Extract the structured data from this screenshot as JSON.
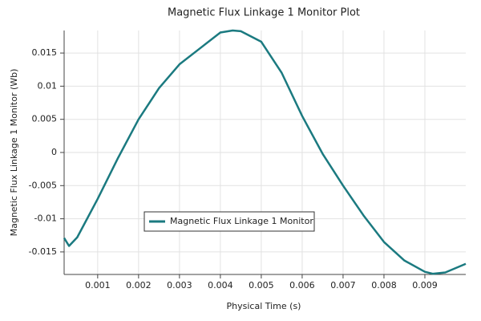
{
  "chart_data": {
    "type": "line",
    "title": "Magnetic Flux Linkage 1 Monitor Plot",
    "xlabel": "Physical Time (s)",
    "ylabel": "Magnetic Flux Linkage 1 Monitor (Wb)",
    "x": [
      0.00018,
      0.0003,
      0.0005,
      0.001,
      0.0015,
      0.002,
      0.0025,
      0.003,
      0.0035,
      0.004,
      0.0043,
      0.0045,
      0.005,
      0.0055,
      0.006,
      0.0065,
      0.007,
      0.0075,
      0.008,
      0.0085,
      0.009,
      0.0092,
      0.0095,
      0.01
    ],
    "series": [
      {
        "name": "Magnetic Flux Linkage 1 Monitor",
        "color": "#1b7a80",
        "values": [
          -0.0129,
          -0.0141,
          -0.0128,
          -0.007,
          -0.0008,
          0.005,
          0.0097,
          0.0133,
          0.0157,
          0.0181,
          0.0184,
          0.0183,
          0.0167,
          0.012,
          0.0055,
          -0.0002,
          -0.005,
          -0.0095,
          -0.0135,
          -0.0163,
          -0.018,
          -0.0183,
          -0.0181,
          -0.0168
        ]
      }
    ],
    "xlim": [
      0.00018,
      0.01
    ],
    "ylim": [
      -0.0184,
      0.0184
    ],
    "xticks": [
      0.001,
      0.002,
      0.003,
      0.004,
      0.005,
      0.006,
      0.007,
      0.008,
      0.009
    ],
    "yticks": [
      -0.015,
      -0.01,
      -0.005,
      0,
      0.005,
      0.01,
      0.015
    ],
    "grid": true
  }
}
